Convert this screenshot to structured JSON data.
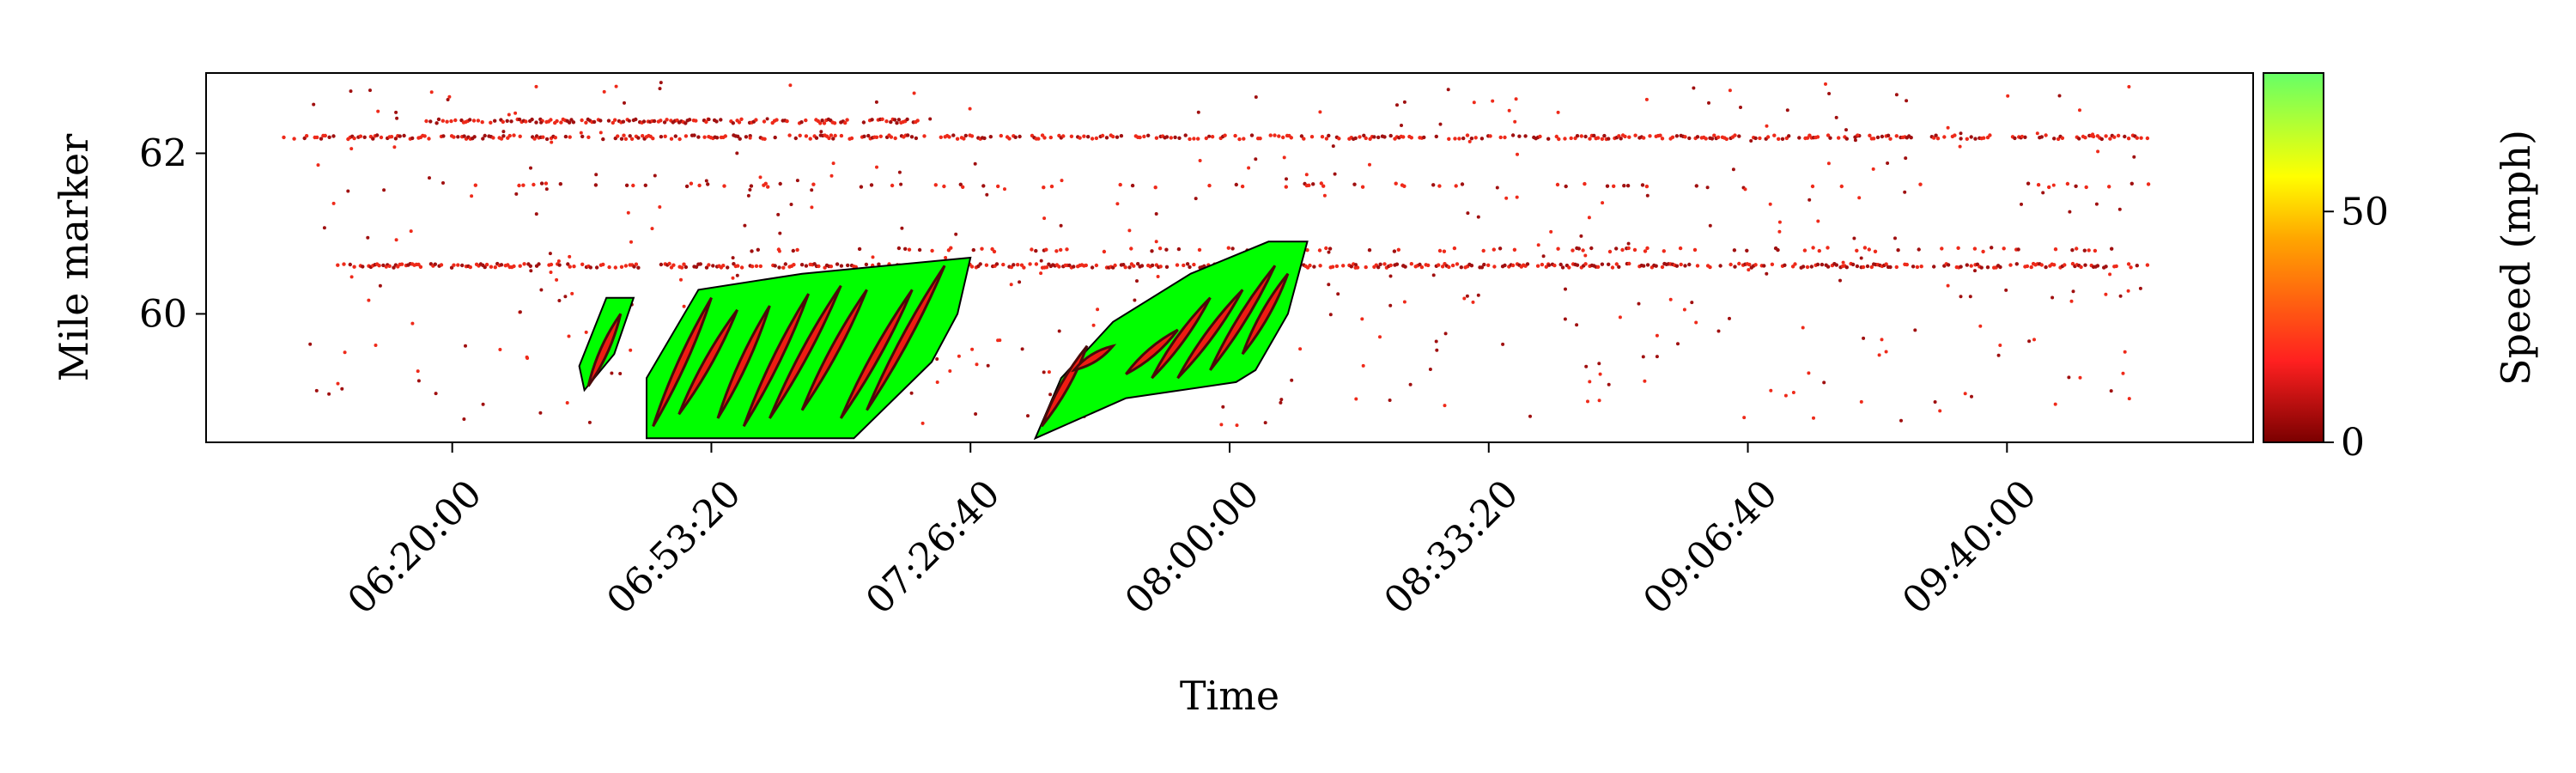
{
  "chart_data": {
    "type": "scatter",
    "title": "",
    "xlabel": "Time",
    "ylabel": "Mile marker",
    "x_ticks": [
      "06:20:00",
      "06:53:20",
      "07:26:40",
      "08:00:00",
      "08:33:20",
      "09:06:40",
      "09:40:00"
    ],
    "x_tick_seconds": [
      22800,
      24800,
      26800,
      28800,
      30800,
      32800,
      34800
    ],
    "xlim_seconds": [
      20900,
      36700
    ],
    "y_ticks": [
      "60",
      "62"
    ],
    "y_tick_values": [
      60,
      62
    ],
    "ylim": [
      63.0,
      58.4
    ],
    "y_inverted": true,
    "grid": false,
    "colorbar": {
      "label": "Speed (mph)",
      "ticks": [
        "0",
        "50"
      ],
      "tick_values": [
        0,
        50
      ],
      "range": [
        0,
        80
      ],
      "colors": [
        "#7a0000",
        "#ff2020",
        "#ffa500",
        "#ffff00",
        "#66ff66"
      ]
    },
    "point_speed_mph": 15,
    "point_color": "#ee2a1a",
    "point_color_dark": "#a01010",
    "lanes": [
      {
        "mile": 60.6,
        "t_start": 21900,
        "t_end": 35900,
        "density": 0.55
      },
      {
        "mile": 62.2,
        "t_start": 21500,
        "t_end": 35900,
        "density": 0.5
      },
      {
        "mile": 62.4,
        "t_start": 22600,
        "t_end": 26400,
        "density": 0.6
      },
      {
        "mile": 60.8,
        "t_start": 25000,
        "t_end": 35900,
        "density": 0.12
      },
      {
        "mile": 61.6,
        "t_start": 22900,
        "t_end": 35900,
        "density": 0.08
      }
    ],
    "congestion_regions": [
      {
        "fill": "#00ff00",
        "vertices": [
          [
            24300,
            58.45
          ],
          [
            24300,
            59.2
          ],
          [
            24700,
            60.3
          ],
          [
            25500,
            60.5
          ],
          [
            26800,
            60.7
          ],
          [
            26700,
            60.0
          ],
          [
            26500,
            59.4
          ],
          [
            25900,
            58.45
          ]
        ]
      },
      {
        "fill": "#00ff00",
        "vertices": [
          [
            23820,
            59.05
          ],
          [
            23780,
            59.35
          ],
          [
            23990,
            60.2
          ],
          [
            24200,
            60.2
          ],
          [
            24050,
            59.5
          ]
        ]
      },
      {
        "fill": "#00ff00",
        "vertices": [
          [
            27300,
            58.45
          ],
          [
            27500,
            59.2
          ],
          [
            27900,
            59.9
          ],
          [
            28500,
            60.5
          ],
          [
            29100,
            60.9
          ],
          [
            29400,
            60.9
          ],
          [
            29250,
            60.0
          ],
          [
            29000,
            59.3
          ],
          [
            28850,
            59.15
          ],
          [
            28000,
            58.95
          ]
        ]
      }
    ],
    "congestion_waves": [
      [
        [
          24350,
          58.6
        ],
        [
          24800,
          60.2
        ]
      ],
      [
        [
          24550,
          58.75
        ],
        [
          25000,
          60.05
        ]
      ],
      [
        [
          24850,
          58.7
        ],
        [
          25250,
          60.1
        ]
      ],
      [
        [
          25050,
          58.6
        ],
        [
          25550,
          60.25
        ]
      ],
      [
        [
          25250,
          58.7
        ],
        [
          25800,
          60.35
        ]
      ],
      [
        [
          25500,
          58.8
        ],
        [
          26000,
          60.3
        ]
      ],
      [
        [
          25800,
          58.7
        ],
        [
          26350,
          60.3
        ]
      ],
      [
        [
          26000,
          58.8
        ],
        [
          26600,
          60.6
        ]
      ],
      [
        [
          23850,
          59.1
        ],
        [
          24100,
          60.0
        ]
      ],
      [
        [
          27350,
          58.6
        ],
        [
          27700,
          59.6
        ]
      ],
      [
        [
          27600,
          59.3
        ],
        [
          27900,
          59.6
        ]
      ],
      [
        [
          28000,
          59.25
        ],
        [
          28400,
          59.8
        ]
      ],
      [
        [
          28200,
          59.2
        ],
        [
          28650,
          60.2
        ]
      ],
      [
        [
          28400,
          59.2
        ],
        [
          28900,
          60.3
        ]
      ],
      [
        [
          28650,
          59.3
        ],
        [
          29150,
          60.6
        ]
      ],
      [
        [
          28900,
          59.5
        ],
        [
          29250,
          60.5
        ]
      ]
    ]
  }
}
